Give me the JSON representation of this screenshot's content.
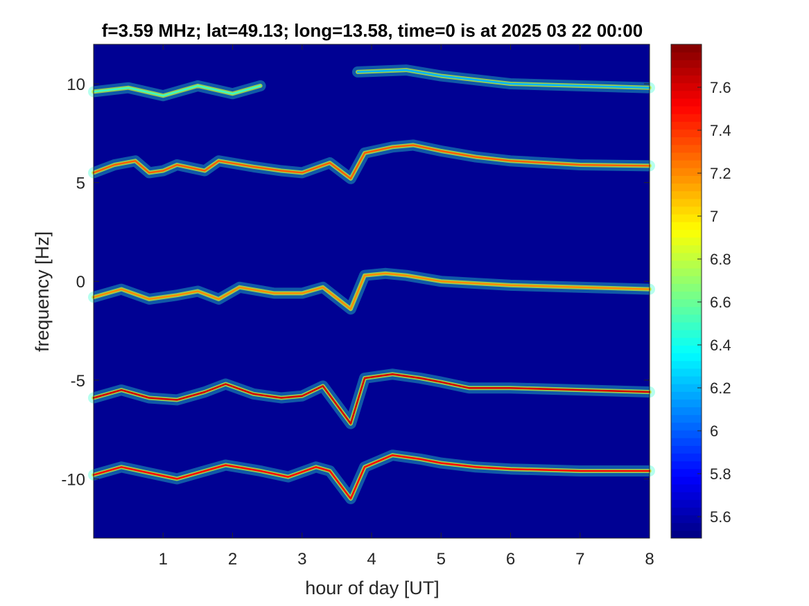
{
  "chart_data": {
    "type": "heatmap",
    "title": "f=3.59 MHz;  lat=49.13; long=13.58, time=0 is at 2025 03 22 00:00",
    "xlabel": "hour of day [UT]",
    "ylabel": "frequency [Hz]",
    "xlim": [
      0,
      8
    ],
    "ylim": [
      -13,
      12
    ],
    "xticks": [
      1,
      2,
      3,
      4,
      5,
      6,
      7,
      8
    ],
    "xtick_labels": [
      "1",
      "2",
      "3",
      "4",
      "5",
      "6",
      "7",
      "8"
    ],
    "yticks": [
      10,
      5,
      0,
      -5,
      -10
    ],
    "ytick_labels": [
      "10",
      "5",
      "0",
      "-5",
      "-10"
    ],
    "colorbar": {
      "colormap": "jet",
      "range": [
        5.5,
        7.8
      ],
      "ticks": [
        7.6,
        7.4,
        7.2,
        7,
        6.8,
        6.6,
        6.4,
        6.2,
        6,
        5.8,
        5.6
      ],
      "tick_labels": [
        "7.6",
        "7.4",
        "7.2",
        "7",
        "6.8",
        "6.6",
        "6.4",
        "6.2",
        "6",
        "5.8",
        "5.6"
      ]
    },
    "background_level": 5.55,
    "series": [
      {
        "points": [
          [
            0,
            9.6
          ],
          [
            0.5,
            9.8
          ],
          [
            1,
            9.4
          ],
          [
            1.5,
            9.9
          ],
          [
            2,
            9.5
          ],
          [
            2.4,
            9.9
          ]
        ],
        "level": 6.5
      },
      {
        "points": [
          [
            3.8,
            10.6
          ],
          [
            4.5,
            10.7
          ],
          [
            5,
            10.4
          ],
          [
            6,
            10
          ],
          [
            7,
            9.9
          ],
          [
            8,
            9.8
          ]
        ],
        "level": 6.2
      },
      {
        "points": [
          [
            0,
            5.5
          ],
          [
            0.3,
            5.9
          ],
          [
            0.6,
            6.1
          ],
          [
            0.8,
            5.5
          ],
          [
            1,
            5.6
          ],
          [
            1.2,
            5.9
          ],
          [
            1.6,
            5.6
          ],
          [
            1.8,
            6.1
          ],
          [
            2.3,
            5.8
          ],
          [
            2.7,
            5.6
          ],
          [
            3,
            5.5
          ],
          [
            3.4,
            6
          ],
          [
            3.7,
            5.2
          ],
          [
            3.9,
            6.5
          ],
          [
            4.3,
            6.8
          ],
          [
            4.6,
            6.9
          ],
          [
            5,
            6.6
          ],
          [
            5.5,
            6.3
          ],
          [
            6,
            6.1
          ],
          [
            7,
            5.9
          ],
          [
            8,
            5.85
          ]
        ],
        "level": 7.3
      },
      {
        "points": [
          [
            0,
            -0.8
          ],
          [
            0.4,
            -0.4
          ],
          [
            0.8,
            -0.9
          ],
          [
            1.2,
            -0.7
          ],
          [
            1.5,
            -0.5
          ],
          [
            1.8,
            -0.9
          ],
          [
            2.1,
            -0.3
          ],
          [
            2.6,
            -0.6
          ],
          [
            3,
            -0.6
          ],
          [
            3.3,
            -0.3
          ],
          [
            3.7,
            -1.4
          ],
          [
            3.9,
            0.3
          ],
          [
            4.2,
            0.4
          ],
          [
            4.5,
            0.3
          ],
          [
            5,
            0
          ],
          [
            5.5,
            -0.1
          ],
          [
            6,
            -0.2
          ],
          [
            7,
            -0.3
          ],
          [
            8,
            -0.4
          ]
        ],
        "level": 7.2
      },
      {
        "points": [
          [
            0,
            -5.9
          ],
          [
            0.4,
            -5.5
          ],
          [
            0.8,
            -5.9
          ],
          [
            1.2,
            -6
          ],
          [
            1.6,
            -5.6
          ],
          [
            1.9,
            -5.2
          ],
          [
            2.3,
            -5.7
          ],
          [
            2.7,
            -5.9
          ],
          [
            3,
            -5.8
          ],
          [
            3.3,
            -5.3
          ],
          [
            3.7,
            -7.2
          ],
          [
            3.9,
            -4.9
          ],
          [
            4.3,
            -4.7
          ],
          [
            4.7,
            -4.9
          ],
          [
            5,
            -5.1
          ],
          [
            5.4,
            -5.4
          ],
          [
            6,
            -5.4
          ],
          [
            7,
            -5.5
          ],
          [
            8,
            -5.6
          ]
        ],
        "level": 7.6
      },
      {
        "points": [
          [
            0,
            -9.8
          ],
          [
            0.4,
            -9.4
          ],
          [
            0.8,
            -9.7
          ],
          [
            1.2,
            -10
          ],
          [
            1.6,
            -9.6
          ],
          [
            1.9,
            -9.3
          ],
          [
            2.4,
            -9.6
          ],
          [
            2.8,
            -9.9
          ],
          [
            3.2,
            -9.4
          ],
          [
            3.4,
            -9.6
          ],
          [
            3.7,
            -11
          ],
          [
            3.9,
            -9.4
          ],
          [
            4.3,
            -8.8
          ],
          [
            4.7,
            -9
          ],
          [
            5,
            -9.2
          ],
          [
            5.5,
            -9.4
          ],
          [
            6,
            -9.5
          ],
          [
            7,
            -9.6
          ],
          [
            8,
            -9.6
          ]
        ],
        "level": 7.5
      }
    ]
  }
}
